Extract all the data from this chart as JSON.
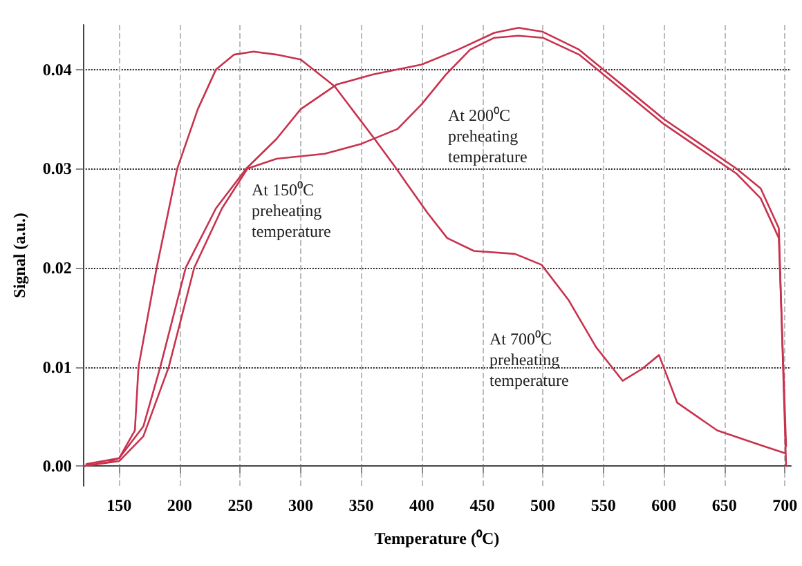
{
  "chart_data": {
    "type": "line",
    "xlabel": "Temperature (⁰C)",
    "ylabel": "Signal (a.u.)",
    "xlim": [
      120,
      705
    ],
    "xticks": [
      150,
      200,
      250,
      300,
      350,
      400,
      450,
      500,
      550,
      600,
      650,
      700
    ],
    "ylim": [
      -0.002,
      0.0445
    ],
    "yticks": [
      {
        "value": 0,
        "label": "0.00"
      },
      0.01,
      0.02,
      0.03,
      0.04
    ],
    "grid": true,
    "marker": "none",
    "line_style": "solid",
    "annotations": [
      "At 150⁰C preheating temperature",
      "At 200⁰C preheating temperature",
      "At 700⁰C preheating temperature"
    ],
    "series": [
      {
        "color": "#c8324e",
        "x": [
          121,
          141,
          150,
          163,
          166,
          181,
          198,
          215,
          230,
          245,
          261,
          280,
          300,
          328,
          361,
          379,
          387,
          405,
          421,
          443,
          477,
          499,
          521,
          544,
          566,
          582,
          596,
          611,
          644,
          678,
          700
        ],
        "values": [
          0,
          0.0004,
          0.0008,
          0.0036,
          0.01,
          0.02,
          0.03,
          0.036,
          0.04,
          0.0415,
          0.0418,
          0.0415,
          0.041,
          0.0383,
          0.033,
          0.03,
          0.0286,
          0.0255,
          0.023,
          0.0217,
          0.0214,
          0.0203,
          0.0168,
          0.012,
          0.0086,
          0.0098,
          0.0112,
          0.0064,
          0.0036,
          0.0022,
          0.0013
        ]
      },
      {
        "color": "#c8324e",
        "x": [
          123,
          150,
          170,
          184,
          205,
          230,
          255,
          280,
          300,
          330,
          360,
          400,
          430,
          460,
          480,
          500,
          530,
          550,
          570,
          600,
          630,
          660,
          680,
          695,
          701
        ],
        "values": [
          0.0002,
          0.0008,
          0.004,
          0.01,
          0.02,
          0.026,
          0.03,
          0.033,
          0.036,
          0.0385,
          0.0395,
          0.0405,
          0.042,
          0.0437,
          0.0442,
          0.0438,
          0.042,
          0.04,
          0.038,
          0.035,
          0.0325,
          0.03,
          0.028,
          0.024,
          0
        ]
      },
      {
        "color": "#c8324e",
        "x": [
          121,
          150,
          170,
          191,
          212,
          235,
          256,
          280,
          320,
          350,
          380,
          400,
          420,
          440,
          460,
          480,
          500,
          530,
          550,
          570,
          600,
          630,
          660,
          680,
          695,
          701
        ],
        "values": [
          0,
          0.0005,
          0.003,
          0.01,
          0.02,
          0.026,
          0.03,
          0.031,
          0.0315,
          0.0325,
          0.034,
          0.0365,
          0.0395,
          0.042,
          0.0432,
          0.0434,
          0.0432,
          0.0415,
          0.0395,
          0.0375,
          0.0345,
          0.032,
          0.0295,
          0.027,
          0.023,
          0.002
        ]
      }
    ]
  }
}
